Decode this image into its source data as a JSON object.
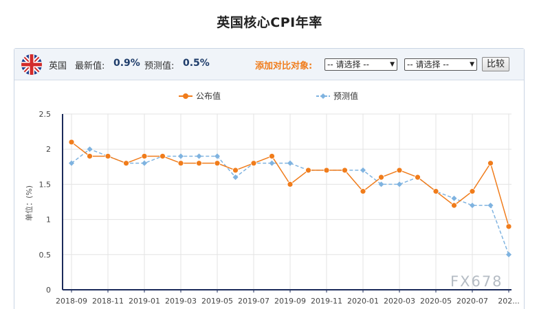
{
  "title": "英国核心CPI年率",
  "header": {
    "country": "英国",
    "latest_label": "最新值:",
    "latest_value": "0.9%",
    "forecast_label": "预测值:",
    "forecast_value": "0.5%",
    "compare_label": "添加对比对象:",
    "select1": "-- 请选择 --",
    "select2": "-- 请选择 --",
    "compare_button": "比较"
  },
  "watermark": "FX678",
  "colors": {
    "actual": "#f07c1b",
    "forecast": "#7fb3e0",
    "axis": "#1a2a5a"
  },
  "chart_data": {
    "type": "line",
    "ylabel": "单位：(%)",
    "ylim": [
      0,
      2.5
    ],
    "yticks": [
      "0",
      "0.5",
      "1",
      "1.5",
      "2",
      "2.5"
    ],
    "xtick_labels": [
      "2018-09",
      "2018-11",
      "2019-01",
      "2019-03",
      "2019-05",
      "2019-07",
      "2019-09",
      "2019-11",
      "2020-01",
      "2020-03",
      "2020-05",
      "2020-07",
      "202..."
    ],
    "grid": true,
    "legend_position": "top-center",
    "series": [
      {
        "name": "公布值",
        "values": [
          2.1,
          1.9,
          1.9,
          1.8,
          1.9,
          1.9,
          1.8,
          1.8,
          1.8,
          1.7,
          1.8,
          1.9,
          1.5,
          1.7,
          1.7,
          1.7,
          1.4,
          1.6,
          1.7,
          1.6,
          1.4,
          1.2,
          1.4,
          1.8,
          0.9
        ]
      },
      {
        "name": "预测值",
        "values": [
          1.8,
          2.0,
          1.9,
          1.8,
          1.8,
          1.9,
          1.9,
          1.9,
          1.9,
          1.6,
          1.8,
          1.8,
          1.8,
          1.7,
          1.7,
          1.7,
          1.7,
          1.5,
          1.5,
          1.6,
          1.4,
          1.3,
          1.2,
          1.2,
          0.5
        ]
      }
    ]
  }
}
